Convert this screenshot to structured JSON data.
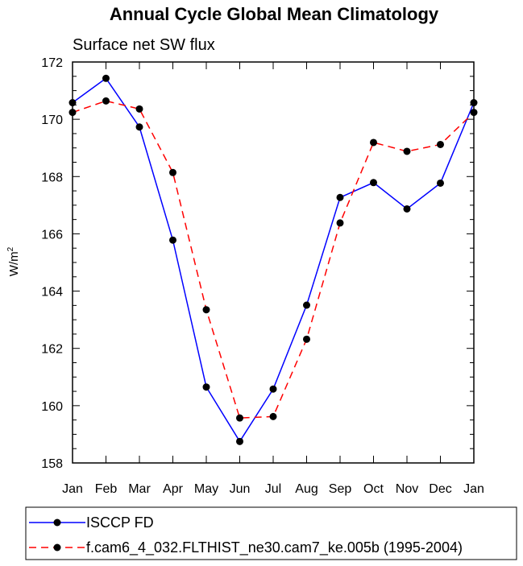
{
  "chart_data": {
    "type": "line",
    "title": "Annual Cycle Global Mean Climatology",
    "subtitle": "Surface net SW flux",
    "ylabel": "W/m",
    "ylabel_sup": "2",
    "xlabel": "",
    "categories": [
      "Jan",
      "Feb",
      "Mar",
      "Apr",
      "May",
      "Jun",
      "Jul",
      "Aug",
      "Sep",
      "Oct",
      "Nov",
      "Dec",
      "Jan"
    ],
    "ylim": [
      158,
      172
    ],
    "yticks": [
      158,
      160,
      162,
      164,
      166,
      168,
      170,
      172
    ],
    "grid": false,
    "legend_position": "bottom",
    "series": [
      {
        "name": "ISCCP FD",
        "color": "#0000ff",
        "dash": "solid",
        "marker_color": "#000000",
        "values": [
          170.58,
          171.43,
          169.73,
          165.78,
          160.65,
          158.75,
          160.58,
          163.51,
          167.27,
          167.79,
          166.87,
          167.77,
          170.58
        ]
      },
      {
        "name": "f.cam6_4_032.FLTHIST_ne30.cam7_ke.005b (1995-2004)",
        "color": "#ff0000",
        "dash": "dashed",
        "marker_color": "#000000",
        "values": [
          170.24,
          170.64,
          170.36,
          168.14,
          163.35,
          159.57,
          159.62,
          162.32,
          166.38,
          169.19,
          168.88,
          169.12,
          170.24
        ]
      }
    ]
  }
}
